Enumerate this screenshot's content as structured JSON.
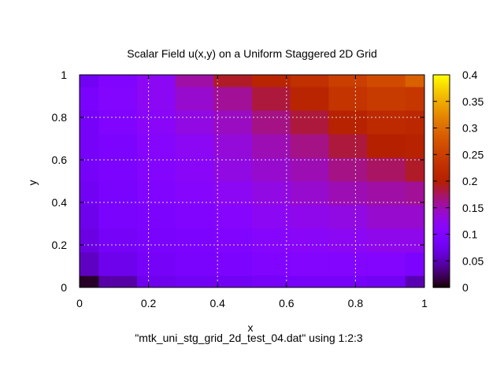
{
  "chart_data": {
    "type": "heatmap",
    "title": "Scalar Field u(x,y) on a Uniform Staggered 2D Grid",
    "xlabel": "x",
    "ylabel": "y",
    "key_label": "\"mtk_uni_stg_grid_2d_test_04.dat\" using 1:2:3",
    "xlim": [
      0,
      1
    ],
    "ylim": [
      0,
      1
    ],
    "zlim": [
      0,
      0.4
    ],
    "x_ticks": [
      "0",
      "0.2",
      "0.4",
      "0.6",
      "0.8",
      "1"
    ],
    "y_ticks": [
      "0",
      "0.2",
      "0.4",
      "0.6",
      "0.8",
      "1"
    ],
    "colorbar_ticks": [
      "0",
      "0.05",
      "0.1",
      "0.15",
      "0.2",
      "0.25",
      "0.3",
      "0.35",
      "0.4"
    ],
    "palette": "gnuplot black-blue-violet-red-orange-yellow",
    "grid": true,
    "x_centers": [
      0.0,
      0.1111,
      0.2222,
      0.3333,
      0.4444,
      0.5556,
      0.6667,
      0.7778,
      0.8889,
      1.0
    ],
    "y_centers": [
      0.0,
      0.1111,
      0.2222,
      0.3333,
      0.4444,
      0.5556,
      0.6667,
      0.7778,
      0.8889,
      1.0
    ],
    "z_rows_bottom_to_top": [
      [
        0.01,
        0.045,
        0.075,
        0.08,
        0.08,
        0.085,
        0.085,
        0.085,
        0.08,
        0.05
      ],
      [
        0.055,
        0.075,
        0.085,
        0.09,
        0.095,
        0.1,
        0.105,
        0.105,
        0.105,
        0.095
      ],
      [
        0.07,
        0.085,
        0.09,
        0.095,
        0.1,
        0.11,
        0.115,
        0.12,
        0.125,
        0.125
      ],
      [
        0.075,
        0.09,
        0.095,
        0.1,
        0.11,
        0.12,
        0.125,
        0.13,
        0.14,
        0.14
      ],
      [
        0.08,
        0.09,
        0.1,
        0.11,
        0.12,
        0.13,
        0.14,
        0.15,
        0.155,
        0.16
      ],
      [
        0.085,
        0.095,
        0.105,
        0.115,
        0.13,
        0.14,
        0.15,
        0.165,
        0.175,
        0.19
      ],
      [
        0.085,
        0.095,
        0.11,
        0.12,
        0.135,
        0.15,
        0.165,
        0.185,
        0.2,
        0.205
      ],
      [
        0.085,
        0.1,
        0.115,
        0.13,
        0.145,
        0.165,
        0.185,
        0.205,
        0.22,
        0.215
      ],
      [
        0.09,
        0.105,
        0.12,
        0.14,
        0.16,
        0.185,
        0.21,
        0.235,
        0.245,
        0.24
      ],
      [
        0.08,
        0.1,
        0.12,
        0.155,
        0.19,
        0.21,
        0.23,
        0.25,
        0.265,
        0.29
      ]
    ]
  }
}
